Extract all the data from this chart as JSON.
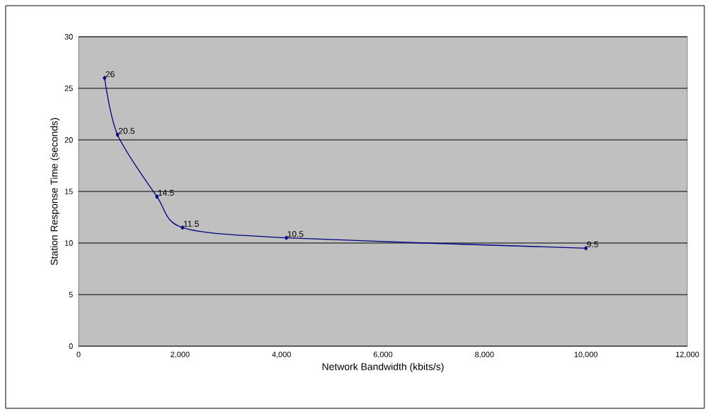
{
  "chart_data": {
    "type": "line",
    "xlabel": "Network Bandwidth (kbits/s)",
    "ylabel": "Station Response Time (seconds)",
    "x": [
      512,
      768,
      1544,
      2048,
      4096,
      10000
    ],
    "series": [
      {
        "color": "#000080",
        "values": [
          26,
          20.5,
          14.5,
          11.5,
          10.5,
          9.5
        ]
      }
    ],
    "xlim": [
      0,
      12000
    ],
    "ylim": [
      0,
      30
    ],
    "xticks": [
      0,
      {
        "value": 2000,
        "label": "2,000"
      },
      {
        "value": 4000,
        "label": "4,000"
      },
      {
        "value": 6000,
        "label": "6,000"
      },
      {
        "value": 8000,
        "label": "8,000"
      },
      {
        "value": 10000,
        "label": "10,000"
      },
      {
        "value": 12000,
        "label": "12,000"
      }
    ],
    "yticks": [
      0,
      5,
      10,
      15,
      20,
      25,
      30
    ],
    "grid": "y",
    "data_labels": true,
    "marker": "diamond",
    "line_style": "solid"
  }
}
